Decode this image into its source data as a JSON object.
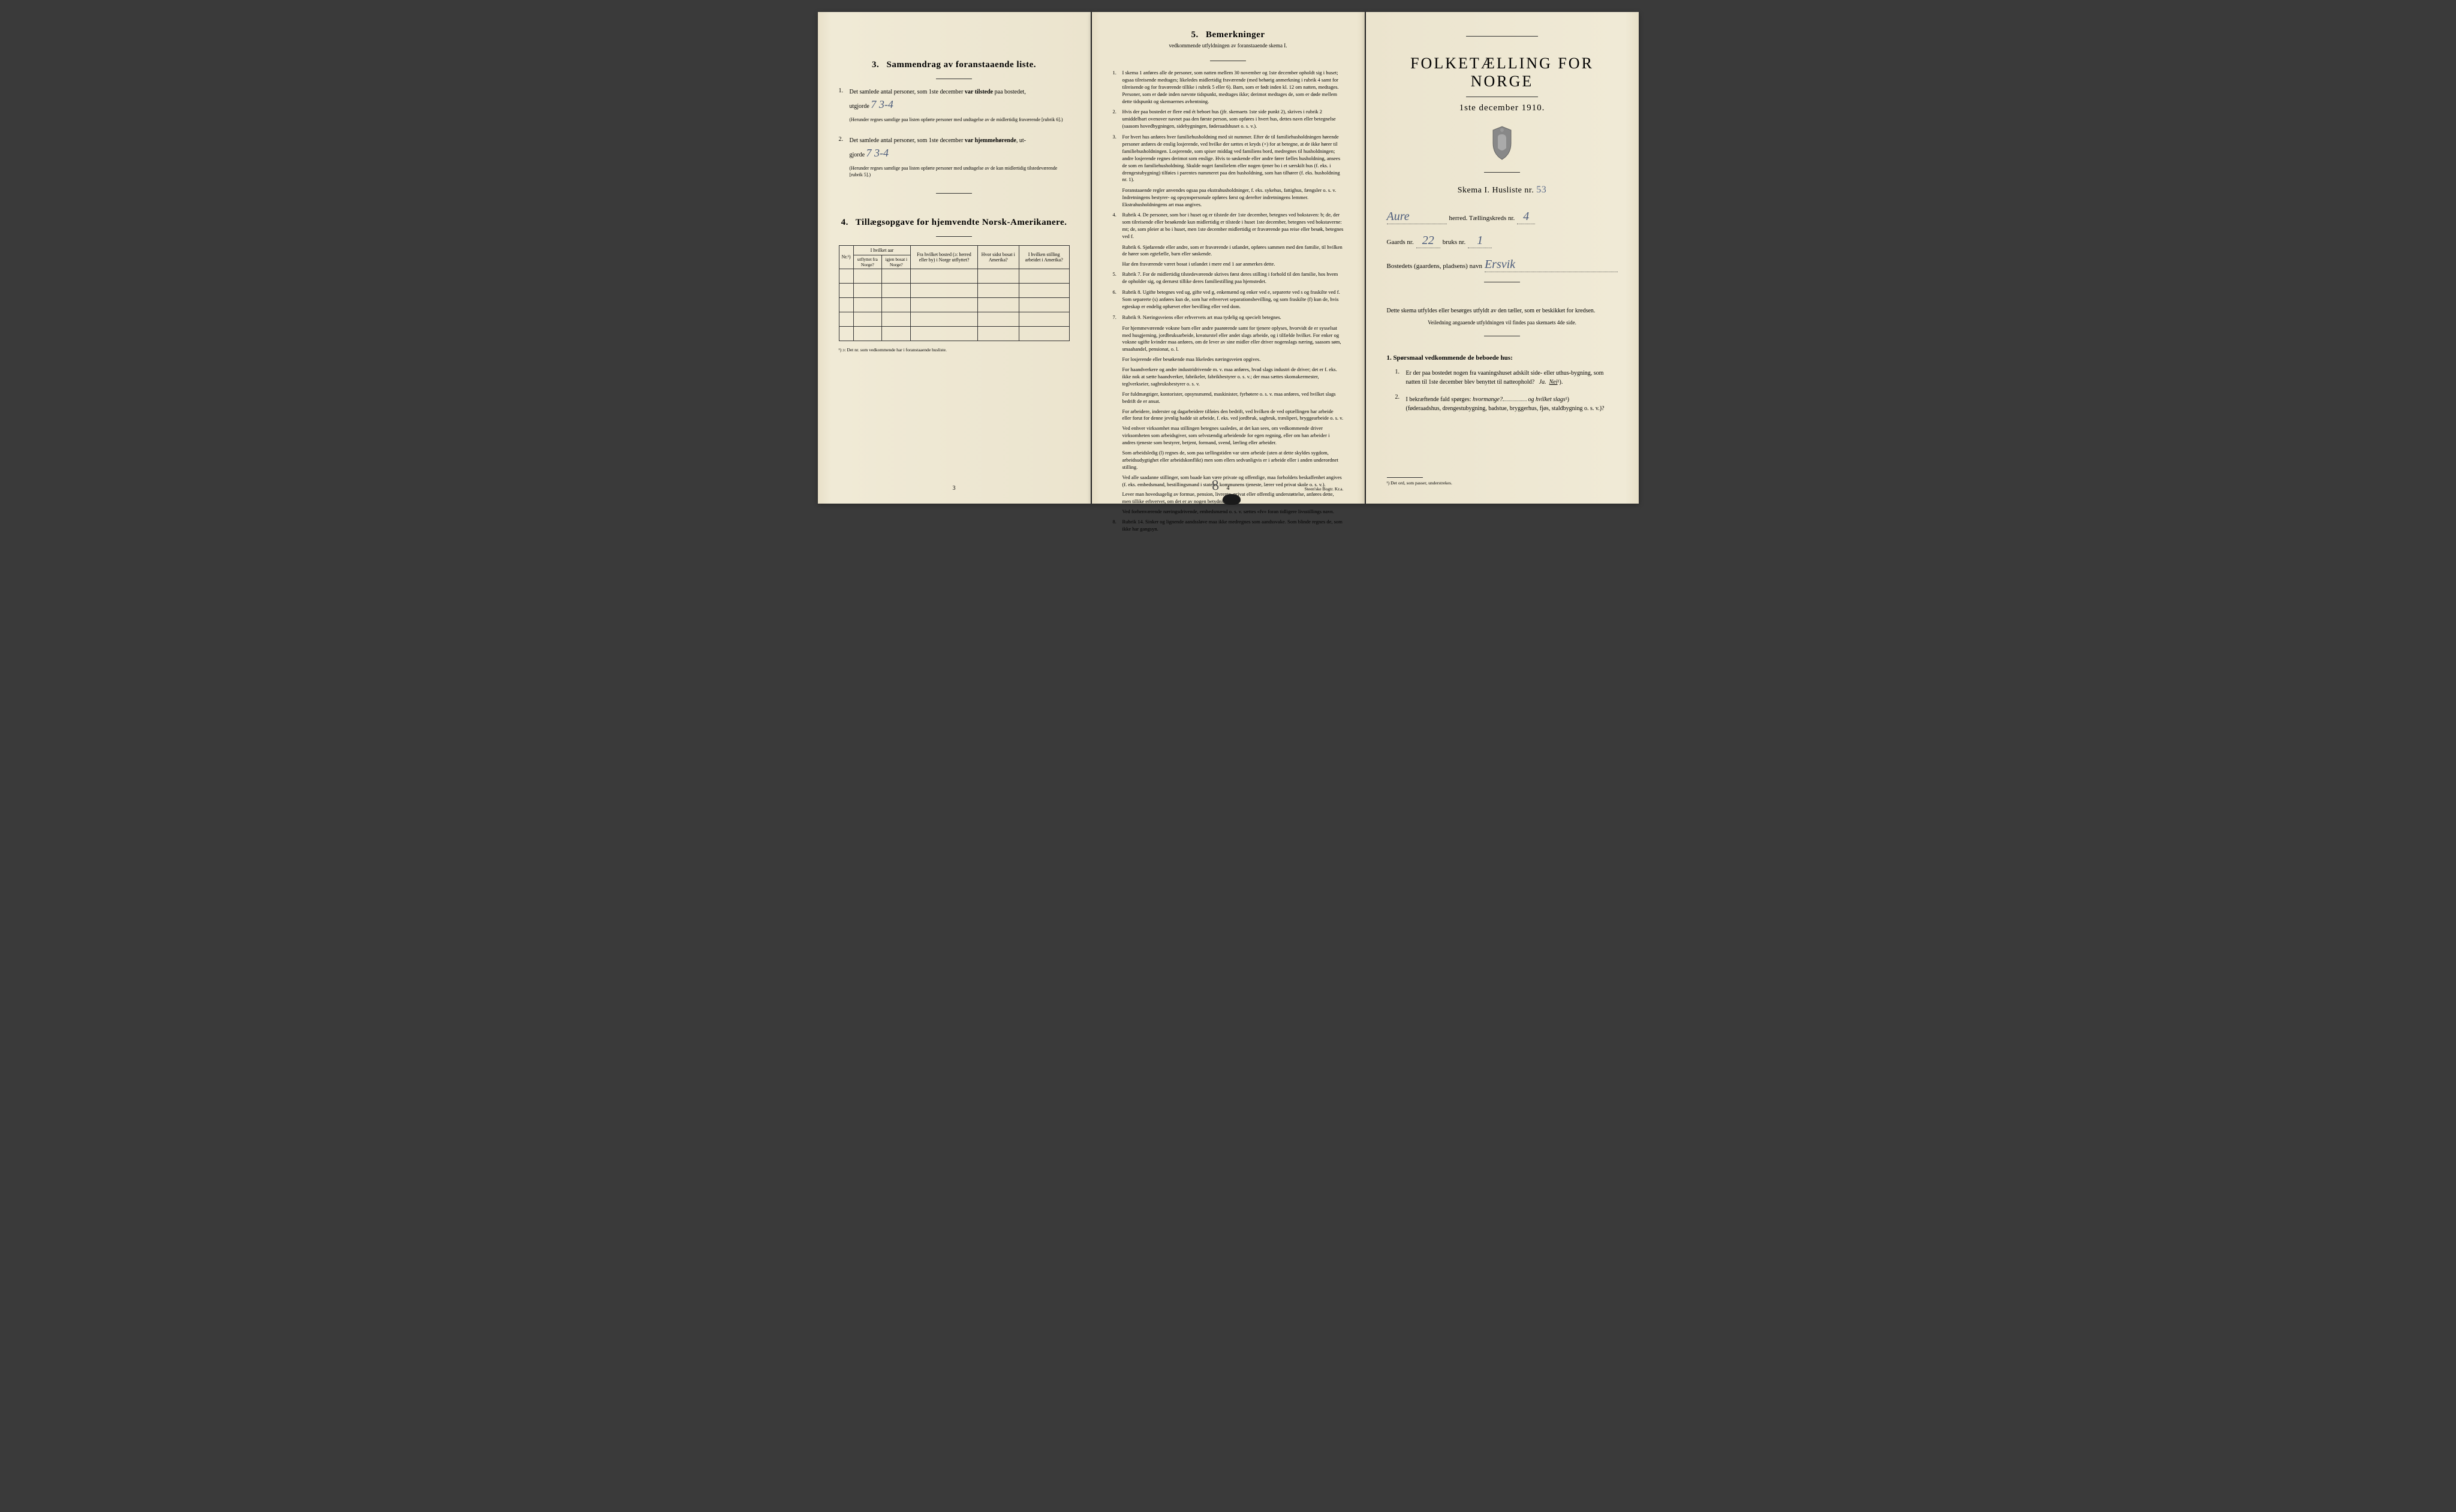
{
  "page1": {
    "section3": {
      "title": "Sammendrag av foranstaaende liste.",
      "num": "3.",
      "item1": {
        "num": "1.",
        "text_a": "Det samlede antal personer, som 1ste december ",
        "text_b": "var tilstede",
        "text_c": " paa bostedet,",
        "text_d": "utgjorde",
        "hw": "7   3-4",
        "note": "(Herunder regnes samtlige paa listen opførte personer med undtagelse av de midlertidig fraværende [rubrik 6].)"
      },
      "item2": {
        "num": "2.",
        "text_a": "Det samlede antal personer, som 1ste december ",
        "text_b": "var hjemmehørende",
        "text_c": ", ut-",
        "text_d": "gjorde",
        "hw": "7   3-4",
        "note": "(Herunder regnes samtlige paa listen opførte personer med undtagelse av de kun midlertidig tilstedeværende [rubrik 5].)"
      }
    },
    "section4": {
      "title": "Tillægsopgave for hjemvendte Norsk-Amerikanere.",
      "num": "4.",
      "headers": {
        "nr": "Nr.¹)",
        "hvilket_aar": "I hvilket aar",
        "utflyttet": "utflyttet fra Norge?",
        "igjen": "igjen bosat i Norge?",
        "fra_bosted": "Fra hvilket bosted (ɔ: herred eller by) i Norge utflyttet?",
        "hvor_sidst": "Hvor sidst bosat i Amerika?",
        "hvilken_stilling": "I hvilken stilling arbeidet i Amerika?"
      },
      "footnote": "¹) ɔ: Det nr. som vedkommende har i foranstaaende husliste."
    },
    "page_num": "3"
  },
  "page2": {
    "title": "Bemerkninger",
    "num": "5.",
    "subtitle": "vedkommende utfyldningen av foranstaaende skema I.",
    "items": [
      {
        "num": "1.",
        "text": "I skema 1 anføres alle de personer, som natten mellem 30 november og 1ste december opholdt sig i huset; ogsaa tilreisende medtages; likeledes midlertidig fraværende (med behørig anmerkning i rubrik 4 samt for tilreisende og for fraværende tillike i rubrik 5 eller 6). Barn, som er født inden kl. 12 om natten, medtages. Personer, som er døde inden nævnte tidspunkt, medtages ikke; derimot medtages de, som er døde mellem dette tidspunkt og skemaernes avhentning."
      },
      {
        "num": "2.",
        "text": "Hvis der paa bostedet er flere end ét beboet hus (jfr. skemaets 1ste side punkt 2), skrives i rubrik 2 umiddelbart ovenover navnet paa den første person, som opføres i hvert hus, dettes navn eller betegnelse (saasom hovedbygningen, sidebygningen, føderaadshuset o. s. v.)."
      },
      {
        "num": "3.",
        "text": "For hvert hus anføres hver familiehusholdning med sit nummer. Efter de til familiehusholdningen hørende personer anføres de enslig losjerende, ved hvilke der sættes et kryds (×) for at betegne, at de ikke hører til familiehusholdningen. Losjerende, som spiser middag ved familiens bord, medregnes til husholdningen; andre losjerende regnes derimot som enslige. Hvis to søskende eller andre fører fælles husholdning, ansees de som en familiehusholdning. Skulde noget familielem eller nogen tjener bo i et særskilt hus (f. eks. i drengestubygning) tilføies i parentes nummeret paa den husholdning, som han tilhører (f. eks. husholdning nr. 1)."
      }
    ],
    "para_after3": "Foranstaaende regler anvendes ogsaa paa ekstrahusholdninger, f. eks. sykehus, fattighus, fængsler o. s. v. Indretningens bestyrer- og opsynspersonale opføres først og derefter indretningens lemmer. Ekstrahusholdningens art maa angives.",
    "item4": {
      "num": "4.",
      "text": "Rubrik 4. De personer, som bor i huset og er tilstede der 1ste december, betegnes ved bokstaven: b; de, der som tilreisende eller besøkende kun midlertidig er tilstede i huset 1ste december, betegnes ved bokstaverne: mt; de, som pleier at bo i huset, men 1ste december midlertidig er fraværende paa reise eller besøk, betegnes ved f."
    },
    "rubrik6": "Rubrik 6. Sjøfarende eller andre, som er fraværende i utlandet, opføres sammen med den familie, til hvilken de hører som egtefælle, barn eller søskende.",
    "rubrik6b": "Har den fraværende været bosat i utlandet i mere end 1 aar anmerkes dette.",
    "item5": {
      "num": "5.",
      "text": "Rubrik 7. For de midlertidig tilstedeværende skrives først deres stilling i forhold til den familie, hos hvem de opholder sig, og dernæst tillike deres familiestilling paa hjemstedet."
    },
    "item6": {
      "num": "6.",
      "text": "Rubrik 8. Ugifte betegnes ved ug, gifte ved g, enkemænd og enker ved e, separerte ved s og fraskilte ved f. Som separerte (s) anføres kun de, som har erhvervet separationsbevilling, og som fraskilte (f) kun de, hvis egteskap er endelig ophævet efter bevilling eller ved dom."
    },
    "item7": {
      "num": "7.",
      "text": "Rubrik 9. Næringsveiens eller erhvervets art maa tydelig og specielt betegnes."
    },
    "rubrik9_paras": [
      "For hjemmeværende voksne barn eller andre paarørende samt for tjenere oplyses, hvorvidt de er sysselsat med husgjerning, jordbruksarbeide, kreaturstel eller andet slags arbeide, og i tilfælde hvilket. For enker og voksne ugifte kvinder maa anføres, om de lever av sine midler eller driver nogenslags næring, saasom søm, smaahandel, pensionat, o. l.",
      "For losjerende eller besøkende maa likeledes næringsveien opgives.",
      "For haandverkere og andre industridrivende m. v. maa anføres, hvad slags industri de driver; det er f. eks. ikke nok at sætte haandverker, fabrikeler, fabrikbestyrer o. s. v.; der maa sættes skomakermester, teglverkseier, sagbruksbestyrer o. s. v.",
      "For fuldmægtiger, kontorister, opsynsmænd, maskinister, fyrbøtere o. s. v. maa anføres, ved hvilket slags bedrift de er ansat.",
      "For arbeidere, inderster og dagarbeidere tilføies den bedrift, ved hvilken de ved optællingen har arbeide eller forut for denne jevnlig hadde sit arbeide, f. eks. ved jordbruk, sagbruk, træsliperi, bryggearbeide o. s. v.",
      "Ved enhver virksomhet maa stillingen betegnes saaledes, at det kan sees, om vedkommende driver virksomheten som arbeidsgiver, som selvstændig arbeidende for egen regning, eller om han arbeider i andres tjeneste som bestyrer, betjent, formand, svend, lærling eller arbeider.",
      "Som arbeidsledig (l) regnes de, som paa tællingstiden var uten arbeide (uten at dette skyldes sygdom, arbeidsudygtighet eller arbeidskonflikt) men som ellers sedvanligvis er i arbeide eller i anden underordnet stilling.",
      "Ved alle saadanne stillinger, som baade kan være private og offentlige, maa forholdets beskaffenhet angives (f. eks. embedsmand, bestillingsmand i statens, kommunens tjeneste, lærer ved privat skole o. s. v.).",
      "Lever man hovedsagelig av formue, pension, livrente, privat eller offentlig understøttelse, anføres dette, men tillike erhvervet, om det er av nogen betydning.",
      "Ved forhenværende næringsdrivende, embedsmænd o. s. v. sættes «fv» foran tidligere livsstillings navn."
    ],
    "item8": {
      "num": "8.",
      "text": "Rubrik 14. Sinker og lignende aandssløve maa ikke medregnes som aandssvake. Som blinde regnes de, som ikke har gangsyn."
    },
    "page_num": "4",
    "printer": "Steen'ske Bogtr. Kr.a.",
    "hand8": "8"
  },
  "page3": {
    "main_title": "FOLKETÆLLING FOR NORGE",
    "date": "1ste december 1910.",
    "skema_label": "Skema I.  Husliste nr.",
    "skema_hw": "53",
    "herred_hw": "Aure",
    "herred_label": "herred.  Tællingskreds nr.",
    "kreds_hw": "4",
    "gaards_label_a": "Gaards nr.",
    "gaards_hw_a": "22",
    "gaards_label_b": "bruks nr.",
    "gaards_hw_b": "1",
    "bosted_label": "Bostedets (gaardens, pladsens) navn",
    "bosted_hw": "Ersvik",
    "instruction": "Dette skema utfyldes eller besørges utfyldt av den tæller, som er beskikket for kredsen.",
    "instruction_sub": "Veiledning angaaende utfyldningen vil findes paa skemaets 4de side.",
    "q_title_num": "1.",
    "q_title": "Spørsmaal vedkommende de beboede hus:",
    "q1": {
      "num": "1.",
      "text": "Er der paa bostedet nogen fra vaaningshuset adskilt side- eller uthus-bygning, som natten til 1ste december blev benyttet til natteophold?",
      "ja": "Ja.",
      "nei": "Nei",
      "sup": "¹)."
    },
    "q2": {
      "num": "2.",
      "text_a": "I bekræftende fald spørges: ",
      "text_b": "hvormange?",
      "text_c": " og hvilket slags",
      "sup": "¹)",
      "text_d": "(føderaadshus, drengestubygning, badstue, bryggerhus, fjøs, staldbygning o. s. v.)?"
    },
    "footnote": "¹) Det ord, som passer, understrekes."
  }
}
